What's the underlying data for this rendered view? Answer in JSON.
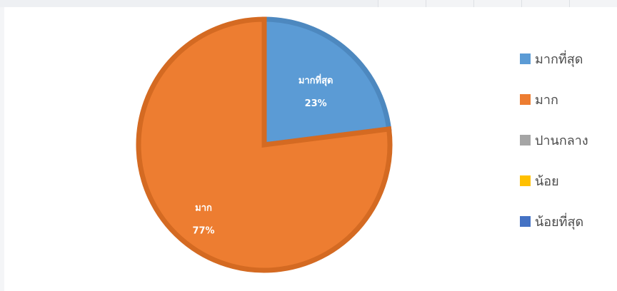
{
  "chart_data": {
    "type": "pie",
    "legend_position": "right",
    "slices": [
      {
        "name": "มากที่สุด",
        "value": 23,
        "label": "มากที่สุด",
        "percent_label": "23%",
        "color": "#5b9bd5"
      },
      {
        "name": "มาก",
        "value": 77,
        "label": "มาก",
        "percent_label": "77%",
        "color": "#ed7d31"
      },
      {
        "name": "ปานกลาง",
        "value": 0,
        "color": "#a5a5a5"
      },
      {
        "name": "น้อย",
        "value": 0,
        "color": "#ffc000"
      },
      {
        "name": "น้อยที่สุด",
        "value": 0,
        "color": "#4472c4"
      }
    ]
  },
  "colors": {
    "slice_border_blue": "#4d88bf",
    "slice_border_orange": "#d46a22"
  }
}
